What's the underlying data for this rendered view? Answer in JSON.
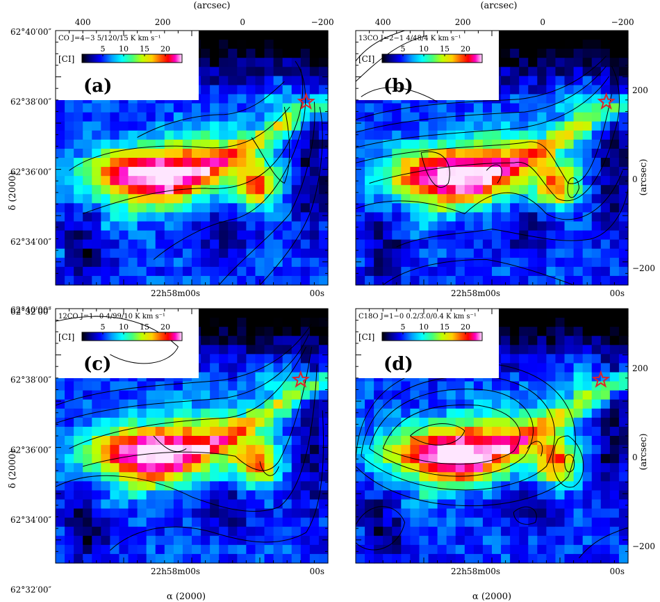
{
  "figure": {
    "top_axis_label": "(arcsec)",
    "bottom_axis_label": "α (2000)",
    "left_axis_label": "δ (2000)",
    "right_axis_label": "(arcsec)",
    "colorbar_label": "[CI]",
    "star_color": "#e0202a"
  },
  "chart_data": [
    {
      "type": "heatmap",
      "panel": "(a)",
      "contour_caption": "CO J=4−3 5/120/15 K km s⁻¹",
      "colorbar_ticks": [
        5,
        10,
        15,
        20
      ],
      "top_ticks": [
        400,
        200,
        0,
        -200
      ],
      "right_ticks": [],
      "left_ticks": [
        "62°40′00″",
        "62°38′00″",
        "62°36′00″",
        "62°34′00″",
        "62°32′00″"
      ],
      "bottom_ticks": [
        "22h58m00s",
        "00s"
      ],
      "peak_regions": [
        {
          "offset_arcsec": [
            250,
            20
          ],
          "value": 22
        },
        {
          "offset_arcsec": [
            60,
            -10
          ],
          "value": 16
        }
      ]
    },
    {
      "type": "heatmap",
      "panel": "(b)",
      "contour_caption": "13CO J=2−1 4/48/4 K km s⁻¹",
      "colorbar_ticks": [
        5,
        10,
        15,
        20
      ],
      "top_ticks": [
        400,
        200,
        0,
        -200
      ],
      "right_ticks": [
        200,
        0,
        -200
      ],
      "left_ticks": [],
      "bottom_ticks": [
        "22h58m00s",
        "00s"
      ]
    },
    {
      "type": "heatmap",
      "panel": "(c)",
      "contour_caption": "12CO J=1−0 4/99/10 K km s⁻¹",
      "colorbar_ticks": [
        5,
        10,
        15,
        20
      ],
      "top_ticks": [],
      "right_ticks": [],
      "left_ticks": [
        "62°40′00″",
        "62°38′00″",
        "62°36′00″",
        "62°34′00″",
        "62°32′00″"
      ],
      "bottom_ticks": [
        "22h58m00s",
        "00s"
      ]
    },
    {
      "type": "heatmap",
      "panel": "(d)",
      "contour_caption": "C18O J=1−0 0.2/3.0/0.4 K km s⁻¹",
      "colorbar_ticks": [
        5,
        10,
        15,
        20
      ],
      "top_ticks": [],
      "right_ticks": [
        200,
        0,
        -200
      ],
      "left_ticks": [],
      "bottom_ticks": [
        "22h58m00s",
        "00s"
      ]
    }
  ]
}
